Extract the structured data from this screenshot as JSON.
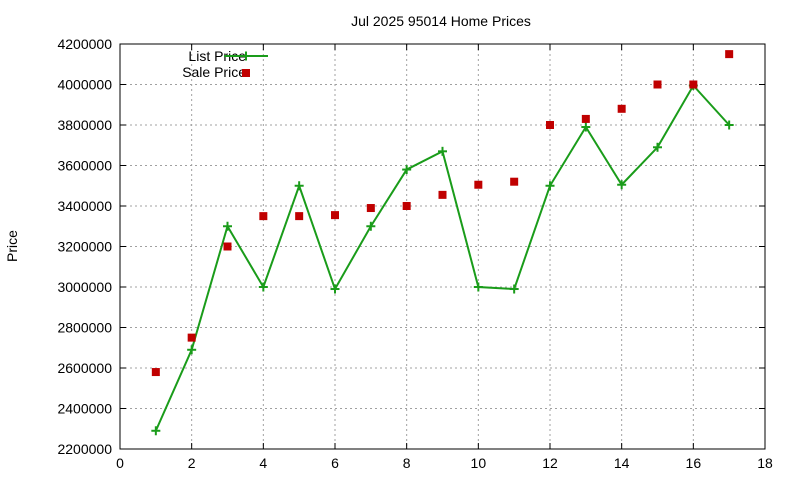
{
  "chart_data": {
    "type": "line",
    "title": "Jul 2025 95014 Home Prices",
    "xlabel": "",
    "ylabel": "Price",
    "xlim": [
      0,
      18
    ],
    "ylim": [
      2200000,
      4200000
    ],
    "x_ticks": [
      "0",
      "2",
      "4",
      "6",
      "8",
      "10",
      "12",
      "14",
      "16",
      "18"
    ],
    "y_ticks": [
      "2200000",
      "2400000",
      "2600000",
      "2800000",
      "3000000",
      "3200000",
      "3400000",
      "3600000",
      "3800000",
      "4000000",
      "4200000"
    ],
    "grid": true,
    "legend_position": "top-left",
    "series": [
      {
        "name": "List Price",
        "style": "linespoints",
        "marker": "plus",
        "color": "#1a9c1a",
        "x": [
          1,
          2,
          3,
          4,
          5,
          6,
          7,
          8,
          9,
          10,
          11,
          12,
          13,
          14,
          15,
          16,
          17
        ],
        "values": [
          2290000,
          2690000,
          3300000,
          3000000,
          3500000,
          2990000,
          3300000,
          3580000,
          3670000,
          3000000,
          2990000,
          3500000,
          3790000,
          3505000,
          3690000,
          3995000,
          3800000
        ]
      },
      {
        "name": "Sale Price",
        "style": "points",
        "marker": "square",
        "color": "#c00000",
        "x": [
          1,
          2,
          3,
          4,
          5,
          6,
          7,
          8,
          9,
          10,
          11,
          12,
          13,
          14,
          15,
          16,
          17
        ],
        "values": [
          2580000,
          2750000,
          3200000,
          3350000,
          3350000,
          3355000,
          3390000,
          3400000,
          3455000,
          3505000,
          3520000,
          3800000,
          3830000,
          3880000,
          4000000,
          4000000,
          4150000
        ]
      }
    ]
  }
}
